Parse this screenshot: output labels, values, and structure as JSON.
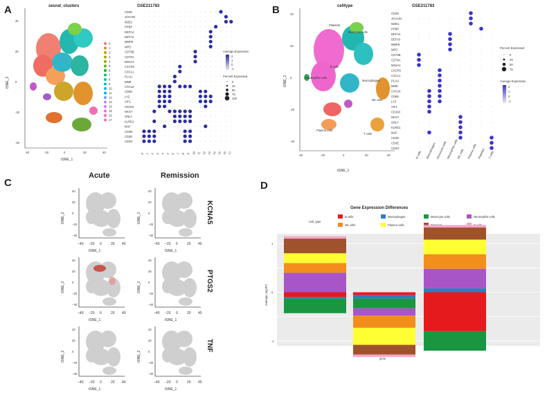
{
  "panels": {
    "A": {
      "letter": "A",
      "umap_title": "seurat_clusters",
      "dot_title": "GSE211783",
      "xlabel": "tSNE_1",
      "ylabel": "tSNE_2",
      "x_ticks": [
        "-40",
        "-20",
        "0",
        "20",
        "40"
      ],
      "y_ticks": [
        "40",
        "20",
        "0",
        "-20",
        "-40"
      ],
      "cluster_ids": [
        "0",
        "1",
        "2",
        "3",
        "4",
        "5",
        "6",
        "7",
        "8",
        "9",
        "10",
        "11",
        "12",
        "13",
        "14",
        "15",
        "16",
        "17"
      ],
      "genes": [
        "CD38",
        "JCHAIN",
        "MZB1",
        "PPBP",
        "DEFA4",
        "DEFA3",
        "MMP8",
        "MPO",
        "CD79B",
        "CD79A",
        "MS4A1",
        "CXCR2",
        "CXCL1",
        "PLAU",
        "MME",
        "CXCL8",
        "CD68",
        "LYZ",
        "AIF1",
        "CD163",
        "NKG7",
        "GNLY",
        "KLRD1",
        "MAF",
        "CD3D",
        "CD3E",
        "CD3G"
      ],
      "legend_avg_title": "Average Expression",
      "legend_avg_ticks": [
        "2",
        "1",
        "0",
        "-1"
      ],
      "legend_pct_title": "Percent Expressed",
      "legend_pct_values": [
        "0",
        "25",
        "50",
        "75",
        "100"
      ]
    },
    "B": {
      "letter": "B",
      "umap_title": "celltype",
      "dot_title": "GSE211783",
      "xlabel": "tSNE_1",
      "ylabel": "tSNE_2",
      "x_ticks": [
        "-40",
        "-20",
        "0",
        "20",
        "40"
      ],
      "y_ticks": [
        "40",
        "20",
        "0",
        "-20",
        "-40"
      ],
      "umap_labels": [
        "Monocyte cells",
        "Platelets",
        "B cells",
        "Neutrophils cells",
        "Macrophages",
        "NK cells",
        "Plasma cells",
        "T cells"
      ],
      "cell_types": [
        "B cells",
        "Macrophages",
        "Monocyte cells",
        "Neutrophils cells",
        "NK cells",
        "Plasma cells",
        "Platelets",
        "T cells"
      ],
      "genes": [
        "CD38",
        "JCHAIN",
        "MZB1",
        "PPBP",
        "DEFA4",
        "DEFA3",
        "MMP8",
        "MPO",
        "CD79B",
        "CD79A",
        "MS4A1",
        "CXCR2",
        "CXCL1",
        "PLAU",
        "MME",
        "CXCL8",
        "CD68",
        "LYZ",
        "AIF1",
        "CD163",
        "NKG7",
        "GNLY",
        "KLRD1",
        "MAF",
        "CD3D",
        "CD3E",
        "CD3G"
      ],
      "legend_pct_title": "Percent Expressed",
      "legend_pct_values": [
        "0",
        "25",
        "50",
        "75"
      ],
      "legend_avg_title": "Average Expression",
      "legend_avg_ticks": [
        "2",
        "1",
        "0",
        "-1"
      ]
    },
    "C": {
      "letter": "C",
      "col_titles": [
        "Acute",
        "Remission"
      ],
      "row_genes": [
        "KCNA5",
        "PTGS2",
        "TNF"
      ],
      "xlabel": "tSNE_1",
      "ylabel": "tSNE_2",
      "x_ticks": [
        "−40",
        "−20",
        "0",
        "20",
        "40"
      ],
      "y_ticks": [
        "40",
        "20",
        "0",
        "−20",
        "−40"
      ]
    },
    "D": {
      "letter": "D",
      "title": "Gene Expression Differences",
      "legend_title": "Cell_type",
      "ylabel": "Average_log2FC",
      "xlabel": "gene",
      "y_ticks": [
        "1",
        "0",
        "-1"
      ]
    }
  },
  "colors": {
    "dot_high": "#2b2f9e",
    "dot_low": "#e6e6f2",
    "umap_grey": "#cfcfcf"
  },
  "chart_data": [
    {
      "type": "bar",
      "title": "Gene Expression Differences",
      "xlabel": "gene",
      "ylabel": "Average_log2FC",
      "categories": [
        "KCNA5",
        "PTGS2",
        "TNF"
      ],
      "category_labels_shown": false,
      "legend_title": "Cell_type",
      "legend_placement": "top",
      "grid": true,
      "ylim": [
        -1.1,
        1.2
      ],
      "series": [
        {
          "name": "B cells",
          "color": "#e41a1c",
          "values": [
            -0.1,
            -0.06,
            -0.8
          ]
        },
        {
          "name": "Macrophages",
          "color": "#2c7fb8",
          "values": [
            -0.03,
            -0.07,
            0.08
          ]
        },
        {
          "name": "Monocyte cells",
          "color": "#1a9641",
          "values": [
            -0.3,
            -0.2,
            -0.4
          ]
        },
        {
          "name": "Neutrophils cells",
          "color": "#a855c8",
          "values": [
            0.4,
            -0.15,
            0.4
          ]
        },
        {
          "name": "NK cells",
          "color": "#f28e1c",
          "values": [
            0.2,
            -0.25,
            0.3
          ]
        },
        {
          "name": "Plasma cells",
          "color": "#ffff33",
          "values": [
            0.2,
            -0.35,
            0.3
          ]
        },
        {
          "name": "Platelets",
          "color": "#a0522d",
          "values": [
            0.3,
            -0.2,
            0.25
          ]
        },
        {
          "name": "T cells",
          "color": "#f4a6c8",
          "values": [
            0.05,
            -0.05,
            0.05
          ]
        }
      ]
    }
  ]
}
